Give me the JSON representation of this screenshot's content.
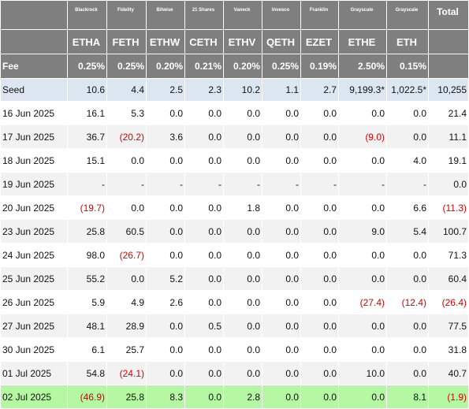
{
  "issuers": [
    "",
    "Blackrock",
    "Fidelity",
    "Bitwise",
    "21 Shares",
    "Vaneck",
    "Invesco",
    "Franklin",
    "Grayscale",
    "Grayscale",
    "Total"
  ],
  "tickers": [
    "",
    "ETHA",
    "FETH",
    "ETHW",
    "CETH",
    "ETHV",
    "QETH",
    "EZET",
    "ETHE",
    "ETH",
    ""
  ],
  "fee": [
    "Fee",
    "0.25%",
    "0.25%",
    "0.20%",
    "0.21%",
    "0.20%",
    "0.25%",
    "0.19%",
    "2.50%",
    "0.15%",
    ""
  ],
  "rows": [
    [
      "Seed",
      "10.6",
      "4.4",
      "2.5",
      "2.3",
      "10.2",
      "1.1",
      "2.7",
      "9,199.3*",
      "1,022.5*",
      "10,255"
    ],
    [
      "16 Jun 2025",
      "16.1",
      "5.3",
      "0.0",
      "0.0",
      "0.0",
      "0.0",
      "0.0",
      "0.0",
      "0.0",
      "21.4"
    ],
    [
      "17 Jun 2025",
      "36.7",
      "(20.2)",
      "3.6",
      "0.0",
      "0.0",
      "0.0",
      "0.0",
      "(9.0)",
      "0.0",
      "11.1"
    ],
    [
      "18 Jun 2025",
      "15.1",
      "0.0",
      "0.0",
      "0.0",
      "0.0",
      "0.0",
      "0.0",
      "0.0",
      "4.0",
      "19.1"
    ],
    [
      "19 Jun 2025",
      "-",
      "-",
      "-",
      "-",
      "-",
      "-",
      "-",
      "-",
      "-",
      "0.0"
    ],
    [
      "20 Jun 2025",
      "(19.7)",
      "0.0",
      "0.0",
      "0.0",
      "1.8",
      "0.0",
      "0.0",
      "0.0",
      "6.6",
      "(11.3)"
    ],
    [
      "23 Jun 2025",
      "25.8",
      "60.5",
      "0.0",
      "0.0",
      "0.0",
      "0.0",
      "0.0",
      "9.0",
      "5.4",
      "100.7"
    ],
    [
      "24 Jun 2025",
      "98.0",
      "(26.7)",
      "0.0",
      "0.0",
      "0.0",
      "0.0",
      "0.0",
      "0.0",
      "0.0",
      "71.3"
    ],
    [
      "25 Jun 2025",
      "55.2",
      "0.0",
      "5.2",
      "0.0",
      "0.0",
      "0.0",
      "0.0",
      "0.0",
      "0.0",
      "60.4"
    ],
    [
      "26 Jun 2025",
      "5.9",
      "4.9",
      "2.6",
      "0.0",
      "0.0",
      "0.0",
      "0.0",
      "(27.4)",
      "(12.4)",
      "(26.4)"
    ],
    [
      "27 Jun 2025",
      "48.1",
      "28.9",
      "0.0",
      "0.5",
      "0.0",
      "0.0",
      "0.0",
      "0.0",
      "0.0",
      "77.5"
    ],
    [
      "30 Jun 2025",
      "6.1",
      "25.7",
      "0.0",
      "0.0",
      "0.0",
      "0.0",
      "0.0",
      "0.0",
      "0.0",
      "31.8"
    ],
    [
      "01 Jul 2025",
      "54.8",
      "(24.1)",
      "0.0",
      "0.0",
      "0.0",
      "0.0",
      "0.0",
      "10.0",
      "0.0",
      "40.7"
    ],
    [
      "02 Jul 2025",
      "(46.9)",
      "25.8",
      "8.3",
      "0.0",
      "2.8",
      "0.0",
      "0.0",
      "0.0",
      "8.1",
      "(1.9)"
    ]
  ]
}
